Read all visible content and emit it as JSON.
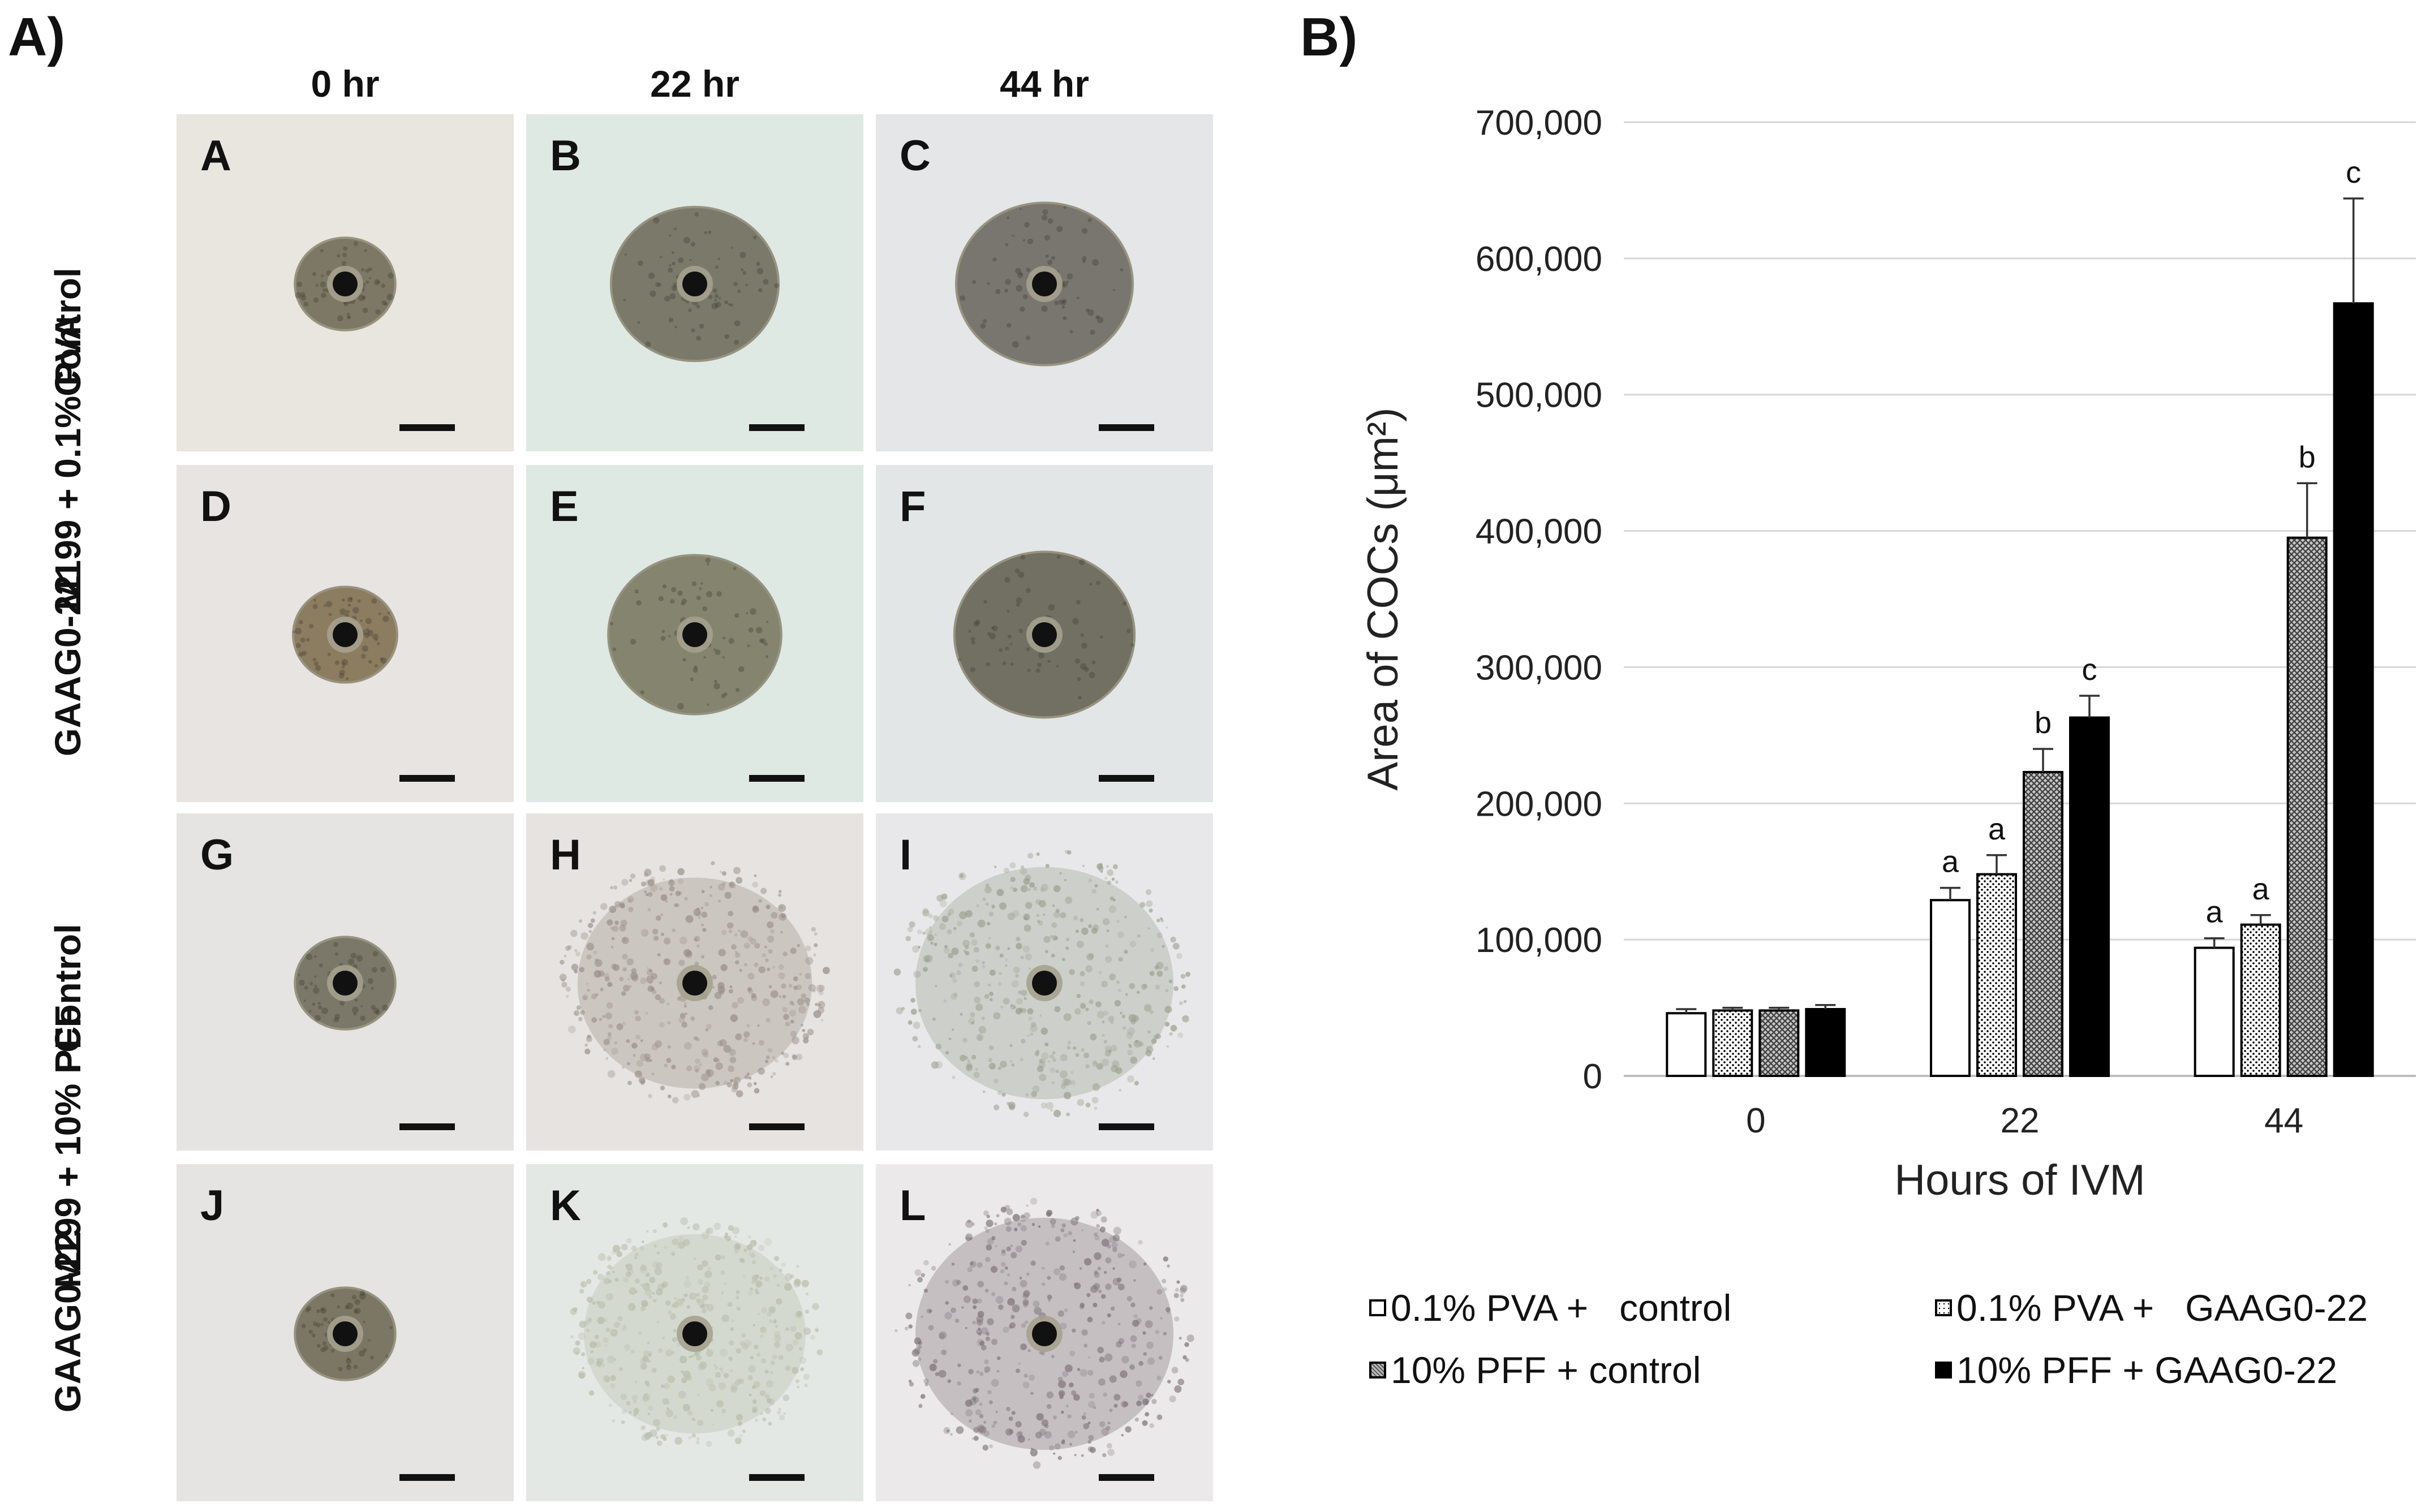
{
  "figure_labels": {
    "panel_a": "A)",
    "panel_b": "B)"
  },
  "columns": [
    "0 hr",
    "22 hr",
    "44 hr"
  ],
  "rows": [
    {
      "group": "M199 + 0.1% PVA",
      "treatment": "Control"
    },
    {
      "group": "M199 + 0.1% PVA",
      "treatment": "GAAG0-22"
    },
    {
      "group": "M199 + 10% PFF",
      "treatment": "Control"
    },
    {
      "group": "M199 + 10% PFF",
      "treatment": "GAAG0-22"
    }
  ],
  "group_labels": [
    "M199 + 0.1% PVA",
    "M199 + 10% PFF"
  ],
  "tiles": [
    {
      "letter": "A",
      "background": "#e9e5df",
      "cell": "#6b6650",
      "expansion": 0.18,
      "diffuse": false
    },
    {
      "letter": "B",
      "background": "#dfe9e3",
      "cell": "#6a6655",
      "expansion": 0.55,
      "diffuse": false
    },
    {
      "letter": "C",
      "background": "#e4e6e8",
      "cell": "#67635a",
      "expansion": 0.6,
      "diffuse": false
    },
    {
      "letter": "D",
      "background": "#e8e4e2",
      "cell": "#7c6b4a",
      "expansion": 0.2,
      "diffuse": false
    },
    {
      "letter": "E",
      "background": "#dde9e2",
      "cell": "#76735c",
      "expansion": 0.58,
      "diffuse": false
    },
    {
      "letter": "F",
      "background": "#e3e6e6",
      "cell": "#5f5b4d",
      "expansion": 0.62,
      "diffuse": false
    },
    {
      "letter": "G",
      "background": "#e6e4e2",
      "cell": "#6a6655",
      "expansion": 0.18,
      "diffuse": false
    },
    {
      "letter": "H",
      "background": "#e6e3e1",
      "cell": "#9a8f88",
      "expansion": 0.92,
      "diffuse": true
    },
    {
      "letter": "I",
      "background": "#e8e8ea",
      "cell": "#9aa08e",
      "expansion": 1.05,
      "diffuse": true
    },
    {
      "letter": "J",
      "background": "#e6e4e2",
      "cell": "#6a6450",
      "expansion": 0.18,
      "diffuse": false
    },
    {
      "letter": "K",
      "background": "#e4e8e5",
      "cell": "#b7bdaa",
      "expansion": 0.85,
      "diffuse": true
    },
    {
      "letter": "L",
      "background": "#ebe9ea",
      "cell": "#7f7378",
      "expansion": 1.05,
      "diffuse": true
    }
  ],
  "chart_data": {
    "type": "bar",
    "xlabel": "Hours of IVM",
    "ylabel": "Area of COCs (μm²)",
    "ylim": [
      0,
      700000
    ],
    "yticks": [
      0,
      100000,
      200000,
      300000,
      400000,
      500000,
      600000,
      700000
    ],
    "ytick_labels": [
      "0",
      "100,000",
      "200,000",
      "300,000",
      "400,000",
      "500,000",
      "600,000",
      "700,000"
    ],
    "grid": true,
    "categories": [
      "0",
      "22",
      "44"
    ],
    "series": [
      {
        "name": "0.1% PVA +   control",
        "fill": "white",
        "values": [
          46000,
          129000,
          94000
        ],
        "errors": [
          3000,
          9000,
          7000
        ],
        "labels": [
          "",
          "a",
          "a"
        ]
      },
      {
        "name": "0.1% PVA +   GAAG0-22",
        "fill": "dots",
        "values": [
          48000,
          148000,
          111000
        ],
        "errors": [
          2000,
          14000,
          7000
        ],
        "labels": [
          "",
          "a",
          "a"
        ]
      },
      {
        "name": "10% PFF + control",
        "fill": "crosshatch",
        "values": [
          48000,
          223000,
          395000
        ],
        "errors": [
          2000,
          17000,
          40000
        ],
        "labels": [
          "",
          "b",
          "b"
        ]
      },
      {
        "name": "10% PFF + GAAG0-22",
        "fill": "black",
        "values": [
          49000,
          263000,
          567000
        ],
        "errors": [
          3000,
          16000,
          77000
        ],
        "labels": [
          "",
          "c",
          "c"
        ]
      }
    ],
    "legend_position": "bottom"
  }
}
